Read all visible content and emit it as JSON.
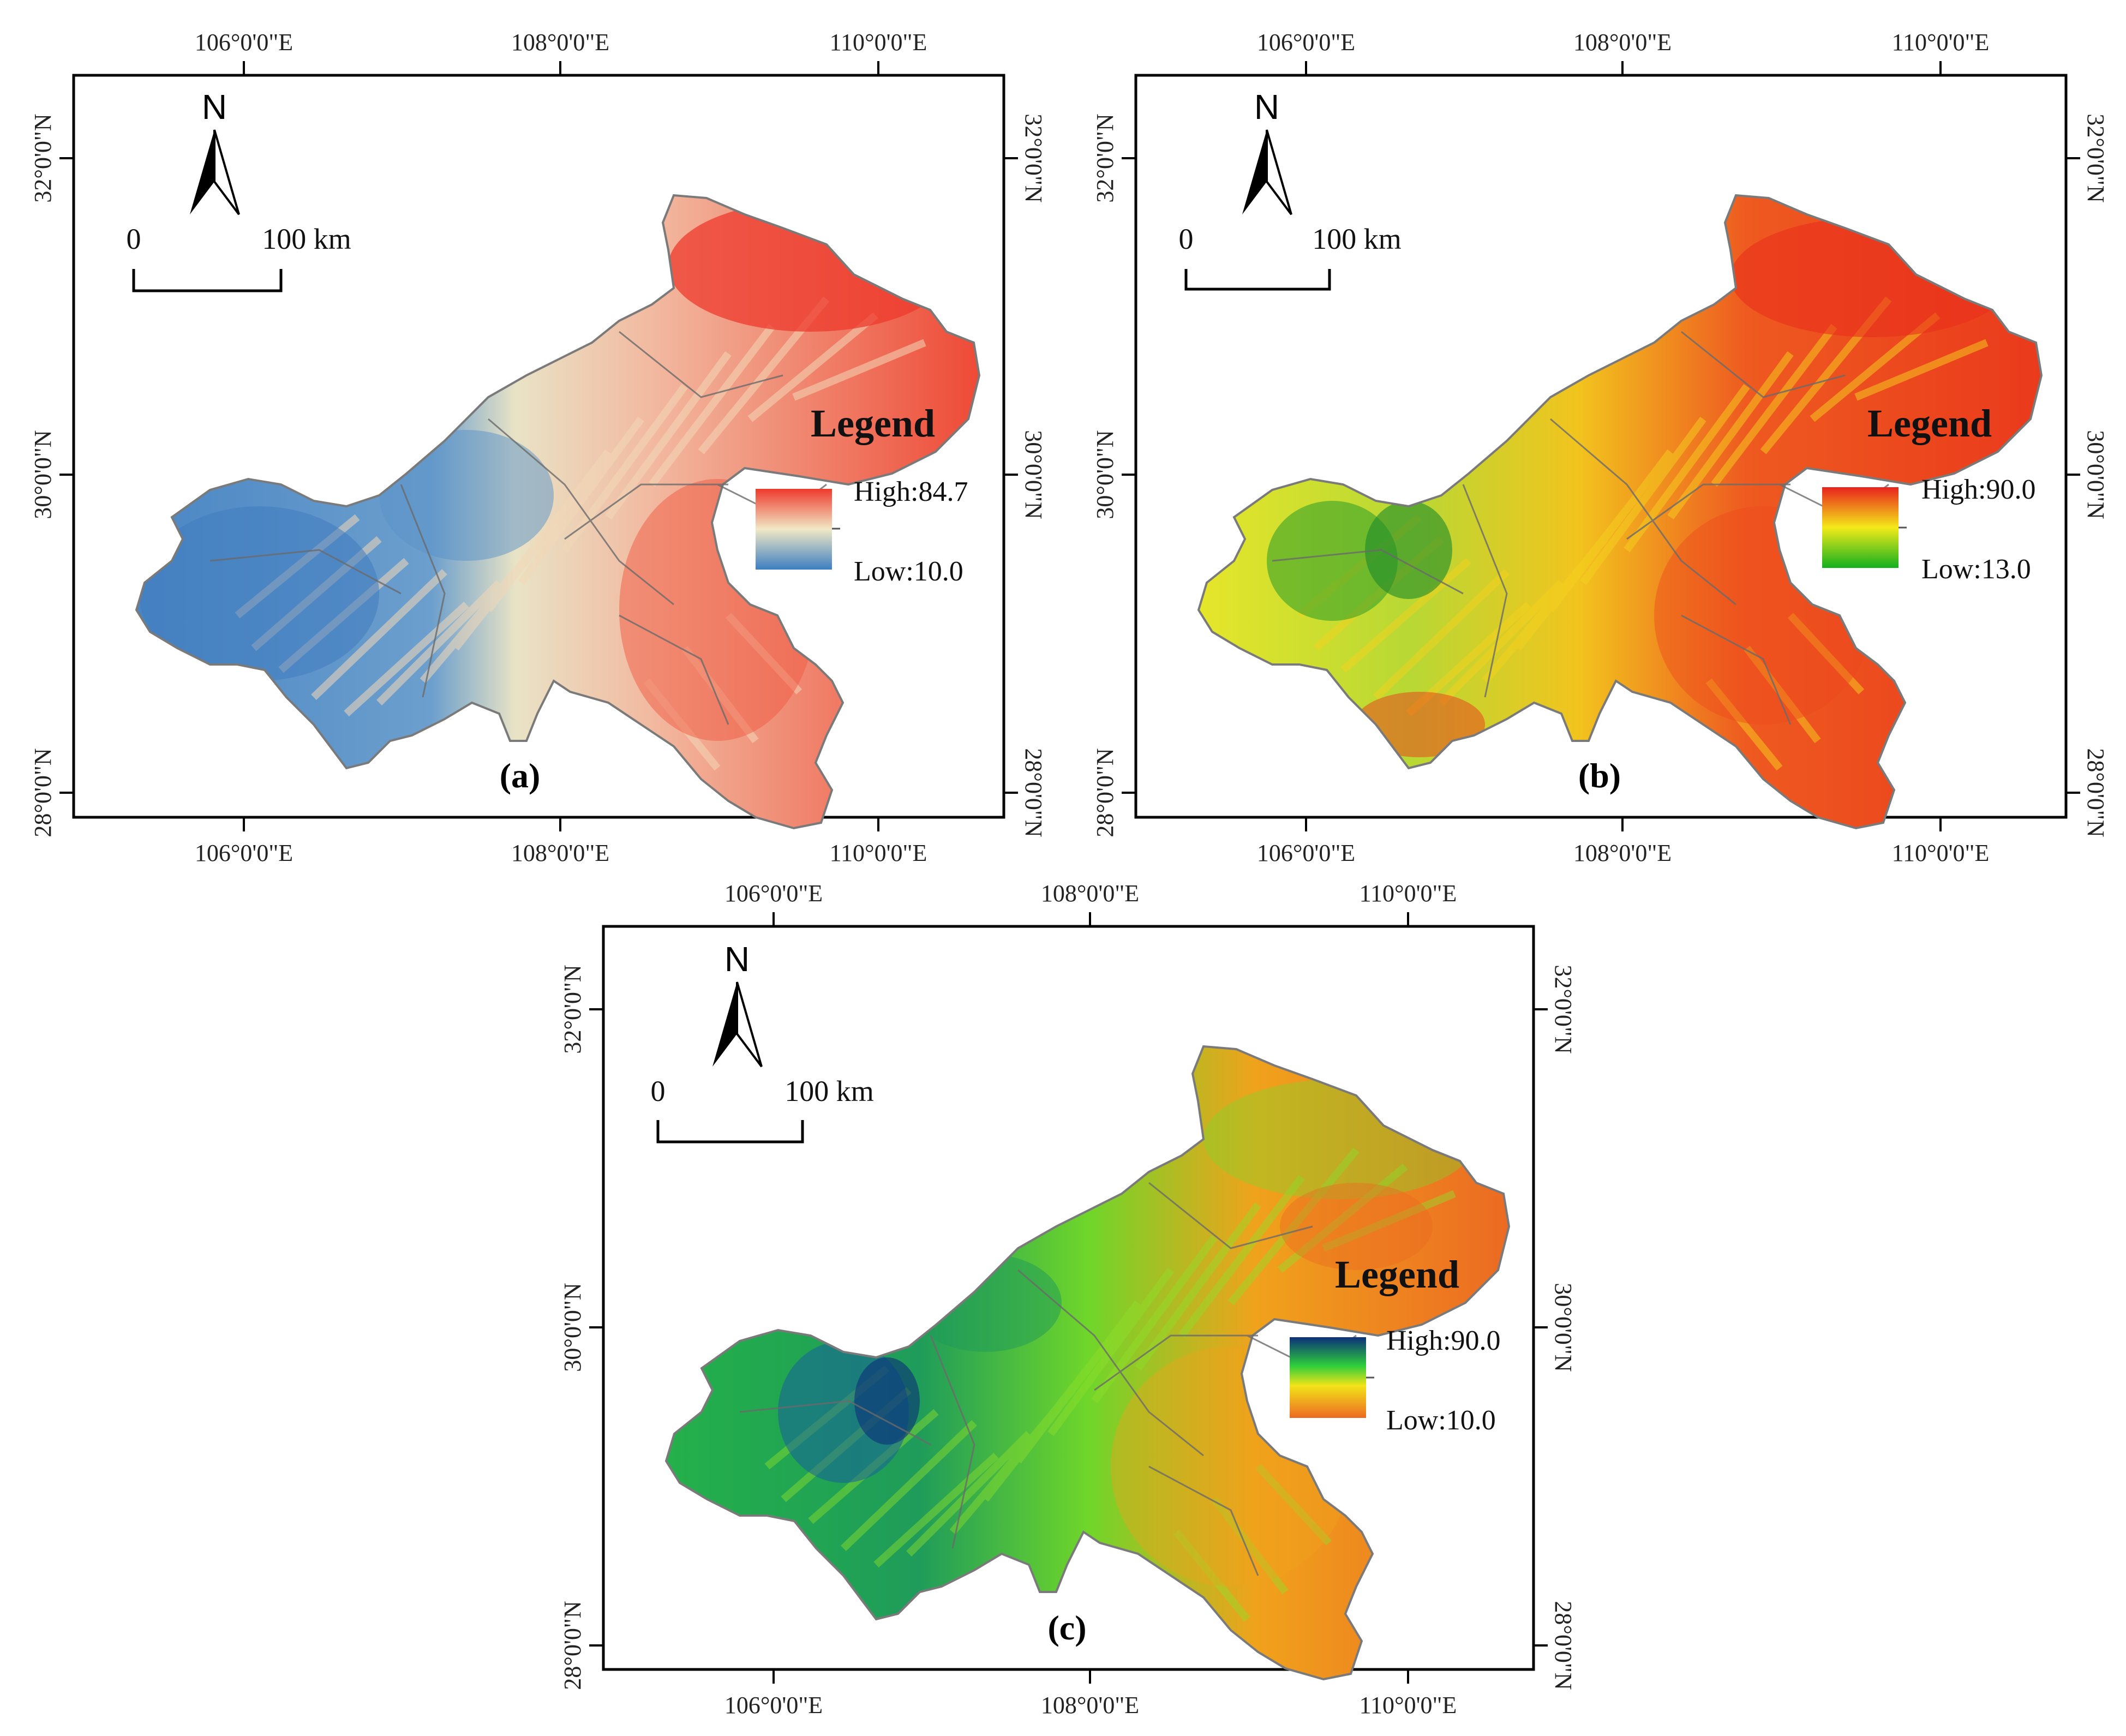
{
  "panels": [
    {
      "id": "a",
      "label": "(a)",
      "legend_title": "Legend",
      "legend_high": "High:84.7",
      "legend_low": "Low:10.0",
      "colors": {
        "high": "#ee3a2c",
        "mid": "#f1e8c6",
        "low": "#3d7fc1"
      },
      "top_ticks": [
        "106°0'0\"E",
        "108°0'0\"E",
        "110°0'0\"E"
      ],
      "bottom_ticks": [
        "106°0'0\"E",
        "108°0'0\"E",
        "110°0'0\"E"
      ],
      "left_ticks": [
        "32°0'0\"N",
        "30°0'0\"N",
        "28°0'0\"N"
      ],
      "right_ticks": [
        "32°0'0\"N",
        "30°0'0\"N",
        "28°0'0\"N"
      ],
      "scale_zero": "0",
      "scale_label": "100 km",
      "north": "N"
    },
    {
      "id": "b",
      "label": "(b)",
      "legend_title": "Legend",
      "legend_high": "High:90.0",
      "legend_low": "Low:13.0",
      "colors": {
        "high": "#e8221c",
        "mid": "#f4ea1a",
        "low": "#12b01e"
      },
      "top_ticks": [
        "106°0'0\"E",
        "108°0'0\"E",
        "110°0'0\"E"
      ],
      "bottom_ticks": [
        "106°0'0\"E",
        "108°0'0\"E",
        "110°0'0\"E"
      ],
      "left_ticks": [
        "32°0'0\"N",
        "30°0'0\"N",
        "28°0'0\"N"
      ],
      "right_ticks": [
        "32°0'0\"N",
        "30°0'0\"N",
        "28°0'0\"N"
      ],
      "scale_zero": "0",
      "scale_label": "100 km",
      "north": "N"
    },
    {
      "id": "c",
      "label": "(c)",
      "legend_title": "Legend",
      "legend_high": "High:90.0",
      "legend_low": "Low:10.0",
      "colors": {
        "high": "#0c2f7a",
        "mid": "#2ccd3c",
        "mid2": "#f2e418",
        "low": "#ec6a22"
      },
      "top_ticks": [
        "106°0'0\"E",
        "108°0'0\"E",
        "110°0'0\"E"
      ],
      "bottom_ticks": [
        "106°0'0\"E",
        "108°0'0\"E",
        "110°0'0\"E"
      ],
      "left_ticks": [
        "32°0'0\"N",
        "30°0'0\"N",
        "28°0'0\"N"
      ],
      "right_ticks": [
        "32°0'0\"N",
        "30°0'0\"N",
        "28°0'0\"N"
      ],
      "scale_zero": "0",
      "scale_label": "100 km",
      "north": "N"
    }
  ]
}
